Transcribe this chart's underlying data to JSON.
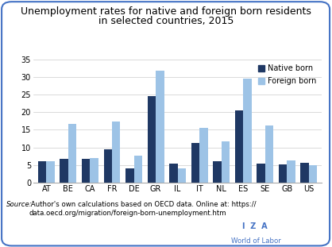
{
  "title_line1": "Unemployment rates for native and foreign born residents",
  "title_line2": "in selected countries, 2015",
  "countries": [
    "AT",
    "BE",
    "CA",
    "FR",
    "DE",
    "GR",
    "IL",
    "IT",
    "NL",
    "ES",
    "SE",
    "GB",
    "US"
  ],
  "native_born": [
    6.1,
    6.7,
    6.8,
    9.5,
    4.0,
    24.5,
    5.5,
    11.3,
    6.1,
    20.6,
    5.5,
    5.1,
    5.6
  ],
  "foreign_born": [
    6.1,
    16.8,
    7.1,
    17.3,
    7.6,
    31.7,
    4.1,
    15.6,
    11.8,
    29.6,
    16.2,
    6.4,
    5.0
  ],
  "native_color": "#1f3864",
  "foreign_color": "#9dc3e6",
  "ylim": [
    0,
    35
  ],
  "yticks": [
    0,
    5,
    10,
    15,
    20,
    25,
    30,
    35
  ],
  "source_italic": "Source:",
  "source_rest": " Author's own calculations based on OECD data. Online at: https://\ndata.oecd.org/migration/foreign-born-unemployment.htm",
  "legend_native": "Native born",
  "legend_foreign": "Foreign born",
  "background_color": "#ffffff",
  "border_color": "#4472c4",
  "iza_text": "I  Z  A",
  "wol_text": "World of Labor"
}
